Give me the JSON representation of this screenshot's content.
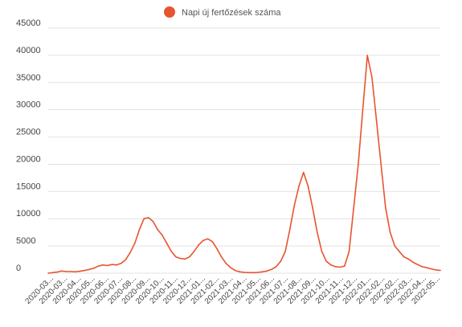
{
  "chart_data": {
    "type": "line",
    "title": "",
    "xlabel": "",
    "ylabel": "",
    "ylim": [
      0,
      45000
    ],
    "y_ticks": [
      0,
      5000,
      10000,
      15000,
      20000,
      25000,
      30000,
      35000,
      40000,
      45000
    ],
    "grid": true,
    "legend_position": "top-center",
    "x_tick_labels": [
      "2020-03...",
      "2020-03...",
      "2020-04...",
      "2020-05...",
      "2020-06...",
      "2020-07...",
      "2020-08...",
      "2020-09...",
      "2020-10...",
      "2020-11...",
      "2020-12...",
      "2021-01...",
      "2021-02...",
      "2021-03...",
      "2021-04...",
      "2021-05...",
      "2021-06...",
      "2021-07...",
      "2021-08...",
      "2021-09...",
      "2021-10...",
      "2021-11...",
      "2021-12...",
      "2022-01...",
      "2022-02...",
      "2022-02...",
      "2022-03...",
      "2022-04...",
      "2022-05..."
    ],
    "series": [
      {
        "name": "Napi új fertőzések száma",
        "color": "#e8542f",
        "points": [
          [
            0,
            0
          ],
          [
            1,
            100
          ],
          [
            2,
            200
          ],
          [
            3,
            400
          ],
          [
            4,
            300
          ],
          [
            5,
            300
          ],
          [
            6,
            250
          ],
          [
            7,
            350
          ],
          [
            8,
            500
          ],
          [
            9,
            700
          ],
          [
            10,
            900
          ],
          [
            11,
            1300
          ],
          [
            12,
            1500
          ],
          [
            13,
            1400
          ],
          [
            14,
            1600
          ],
          [
            15,
            1500
          ],
          [
            16,
            1800
          ],
          [
            17,
            2500
          ],
          [
            18,
            3800
          ],
          [
            19,
            5500
          ],
          [
            20,
            8000
          ],
          [
            21,
            10000
          ],
          [
            22,
            10200
          ],
          [
            23,
            9500
          ],
          [
            24,
            8000
          ],
          [
            25,
            7000
          ],
          [
            26,
            5500
          ],
          [
            27,
            4000
          ],
          [
            28,
            3000
          ],
          [
            29,
            2700
          ],
          [
            30,
            2600
          ],
          [
            31,
            3000
          ],
          [
            32,
            4000
          ],
          [
            33,
            5200
          ],
          [
            34,
            6000
          ],
          [
            35,
            6300
          ],
          [
            36,
            5800
          ],
          [
            37,
            4500
          ],
          [
            38,
            3000
          ],
          [
            39,
            1800
          ],
          [
            40,
            1000
          ],
          [
            41,
            500
          ],
          [
            42,
            250
          ],
          [
            43,
            150
          ],
          [
            44,
            100
          ],
          [
            45,
            100
          ],
          [
            46,
            150
          ],
          [
            47,
            250
          ],
          [
            48,
            400
          ],
          [
            49,
            700
          ],
          [
            50,
            1200
          ],
          [
            51,
            2200
          ],
          [
            52,
            4000
          ],
          [
            53,
            8000
          ],
          [
            54,
            12500
          ],
          [
            55,
            16000
          ],
          [
            56,
            18500
          ],
          [
            57,
            16000
          ],
          [
            58,
            12000
          ],
          [
            59,
            7500
          ],
          [
            60,
            4000
          ],
          [
            61,
            2200
          ],
          [
            62,
            1500
          ],
          [
            63,
            1200
          ],
          [
            64,
            1100
          ],
          [
            65,
            1300
          ],
          [
            66,
            4000
          ],
          [
            67,
            12000
          ],
          [
            68,
            20000
          ],
          [
            69,
            30000
          ],
          [
            70,
            40000
          ],
          [
            71,
            36000
          ],
          [
            72,
            28000
          ],
          [
            73,
            20000
          ],
          [
            74,
            12000
          ],
          [
            75,
            7500
          ],
          [
            76,
            5000
          ],
          [
            77,
            4000
          ],
          [
            78,
            3000
          ],
          [
            79,
            2600
          ],
          [
            80,
            2000
          ],
          [
            81,
            1600
          ],
          [
            82,
            1200
          ],
          [
            83,
            1000
          ],
          [
            84,
            800
          ],
          [
            85,
            600
          ],
          [
            86,
            500
          ]
        ]
      }
    ]
  }
}
